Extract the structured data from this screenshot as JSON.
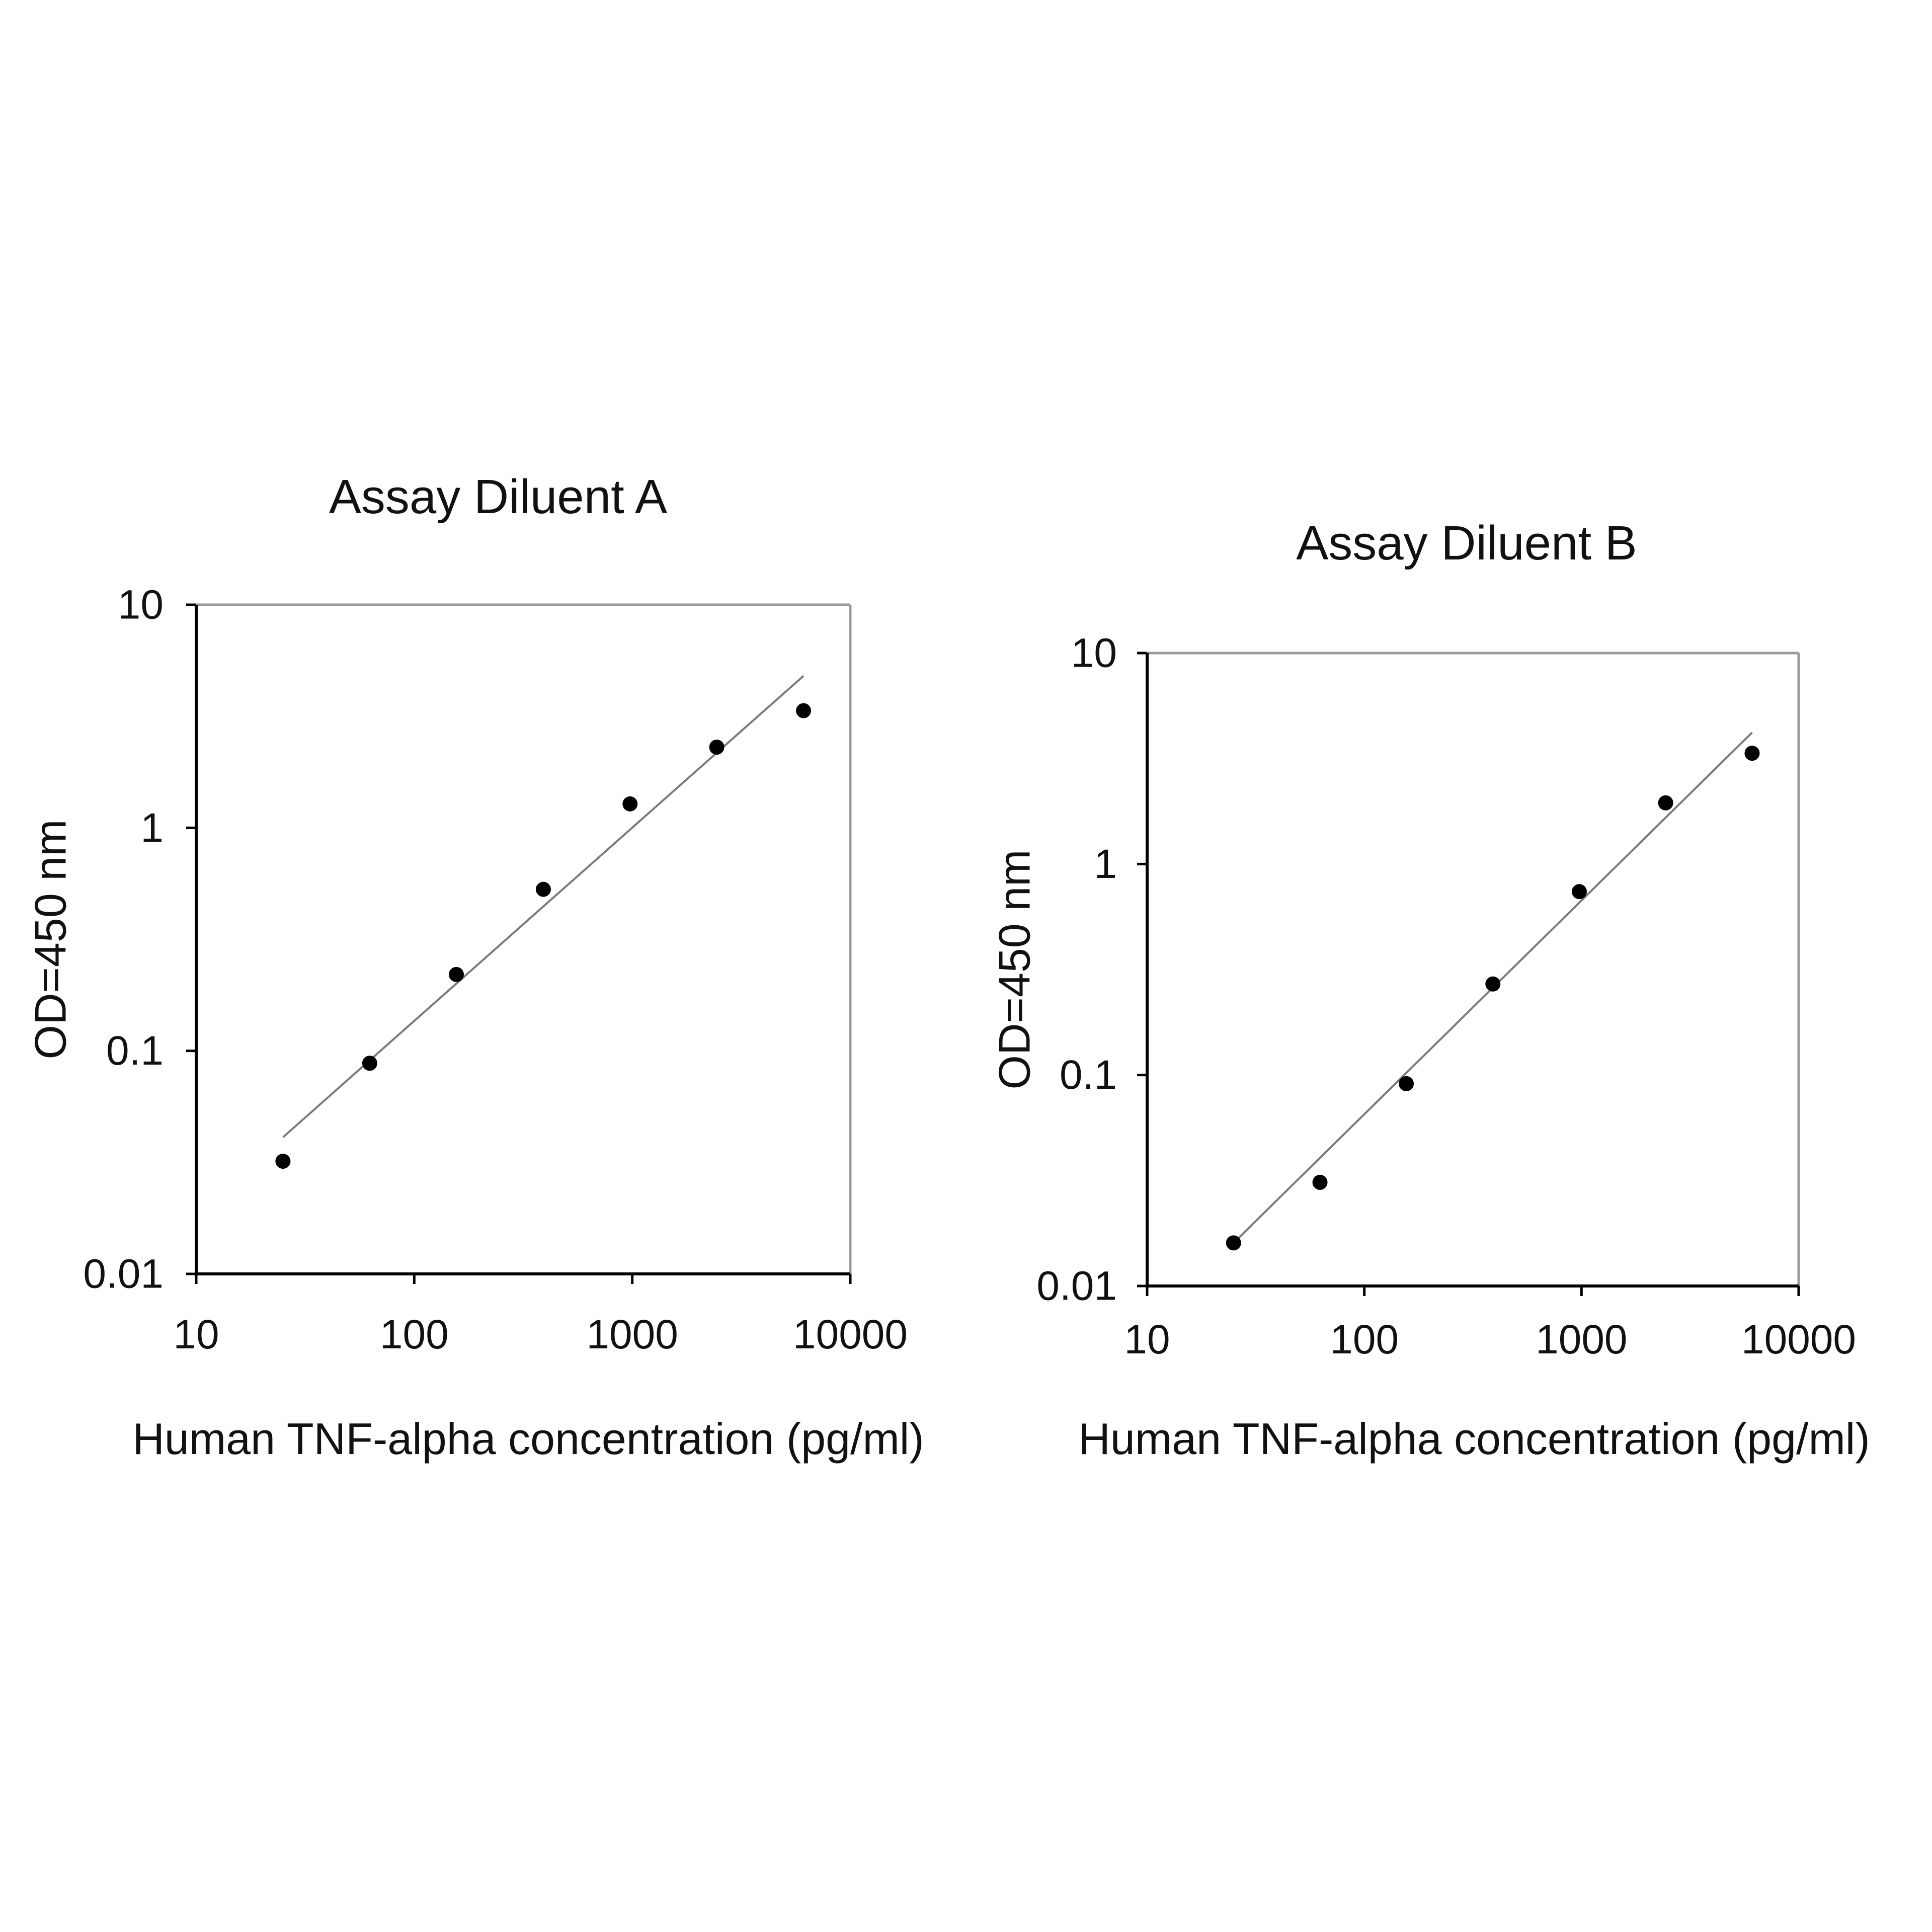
{
  "chart_data": [
    {
      "type": "scatter",
      "title": "Assay Diluent A",
      "xlabel": "Human TNF-alpha concentration (pg/ml)",
      "ylabel": "OD=450 nm",
      "x_scale": "log",
      "y_scale": "log",
      "xlim": [
        10,
        10000
      ],
      "ylim": [
        0.01,
        10
      ],
      "x_ticks": [
        "10",
        "100",
        "1000",
        "10000"
      ],
      "y_ticks": [
        "0.01",
        "0.1",
        "1",
        "10"
      ],
      "grid": false,
      "series": [
        {
          "x": [
            25,
            62.5,
            156,
            391,
            977,
            2441,
            6104
          ],
          "y": [
            0.032,
            0.088,
            0.22,
            0.53,
            1.28,
            2.3,
            3.35
          ]
        }
      ],
      "fit_line": {
        "x": [
          25,
          6104
        ],
        "y": [
          0.041,
          4.8
        ]
      }
    },
    {
      "type": "scatter",
      "title": "Assay Diluent B",
      "xlabel": "Human TNF-alpha concentration (pg/ml)",
      "ylabel": "OD=450 nm",
      "x_scale": "log",
      "y_scale": "log",
      "xlim": [
        10,
        10000
      ],
      "ylim": [
        0.01,
        10
      ],
      "x_ticks": [
        "10",
        "100",
        "1000",
        "10000"
      ],
      "y_ticks": [
        "0.01",
        "0.1",
        "1",
        "10"
      ],
      "grid": false,
      "series": [
        {
          "x": [
            25,
            62.5,
            156,
            391,
            977,
            2441,
            6104
          ],
          "y": [
            0.016,
            0.031,
            0.091,
            0.27,
            0.74,
            1.95,
            3.35
          ]
        }
      ],
      "fit_line": {
        "x": [
          25,
          6104
        ],
        "y": [
          0.016,
          4.2
        ]
      }
    }
  ]
}
